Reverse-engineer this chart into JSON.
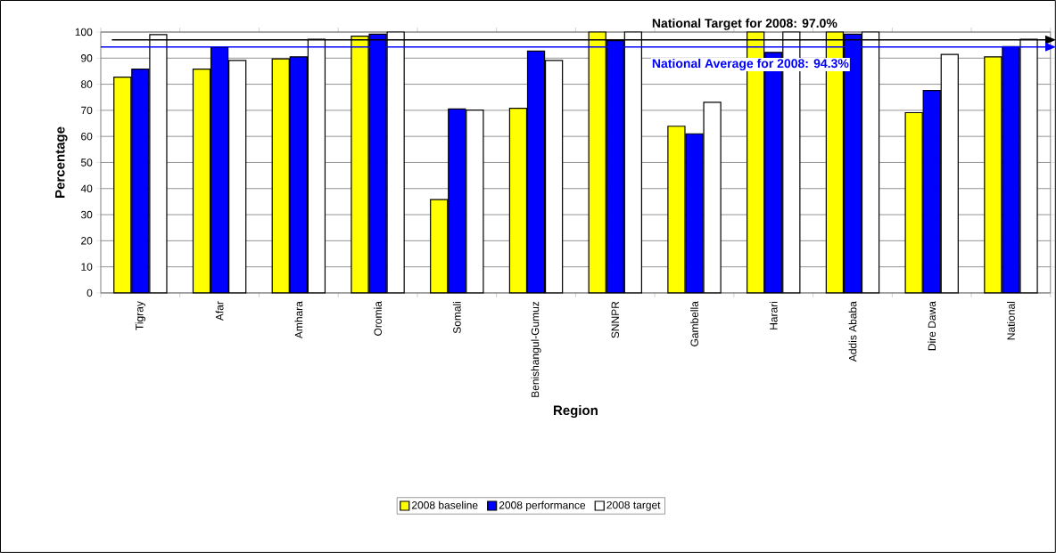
{
  "chart_data": {
    "type": "bar",
    "xlabel": "Region",
    "ylabel": "Percentage",
    "categories": [
      "Tigray",
      "Afar",
      "Amhara",
      "Oromia",
      "Somali",
      "Benishangul-Gumuz",
      "SNNPR",
      "Gambella",
      "Harari",
      "Addis Ababa",
      "Dire Dawa",
      "National"
    ],
    "series": [
      {
        "name": "2008 baseline",
        "color": "#ffff00",
        "values": [
          82.7,
          85.8,
          89.7,
          98.4,
          35.8,
          70.8,
          100,
          63.9,
          100,
          100,
          69.1,
          90.5
        ]
      },
      {
        "name": "2008 performance",
        "color": "#0000ff",
        "values": [
          85.8,
          94.1,
          90.5,
          99.2,
          70.5,
          92.7,
          96.7,
          61.0,
          92.2,
          99.2,
          77.6,
          94.4
        ]
      },
      {
        "name": "2008 target",
        "color": "#ffffff",
        "values": [
          99.0,
          89.1,
          97.2,
          100,
          70.1,
          89.1,
          100,
          73.1,
          100,
          100,
          91.4,
          97.2
        ]
      }
    ],
    "ylim": [
      0,
      100
    ],
    "yticks": [
      0,
      10,
      20,
      30,
      40,
      50,
      60,
      70,
      80,
      90,
      100
    ],
    "grid": "y",
    "legend": "bottom",
    "ref_lines": [
      {
        "axis": "y",
        "value": 97.0,
        "label": "National Target for 2008: 97.0%",
        "color": "#000000"
      },
      {
        "axis": "y",
        "value": 94.3,
        "label": "National Average for 2008: 94.3%",
        "color": "#0000ff"
      }
    ]
  }
}
